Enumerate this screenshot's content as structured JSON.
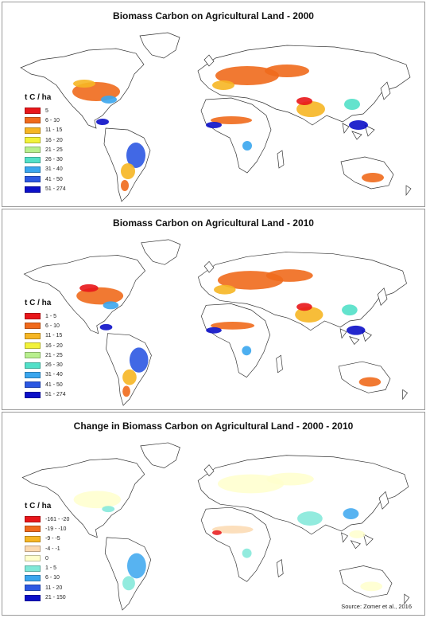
{
  "unit_label": "t C / ha",
  "source": "Source: Zomer et al., 2016",
  "panels": [
    {
      "title": "Biomass Carbon on Agricultural Land - 2000",
      "legend": [
        {
          "label": "5",
          "color": "#e8161a"
        },
        {
          "label": "6 - 10",
          "color": "#f06a1c"
        },
        {
          "label": "11 - 15",
          "color": "#f6b624"
        },
        {
          "label": "16 - 20",
          "color": "#f2f23a"
        },
        {
          "label": "21 - 25",
          "color": "#b8ef8e"
        },
        {
          "label": "26 - 30",
          "color": "#52e0c8"
        },
        {
          "label": "31 - 40",
          "color": "#3aa6ee"
        },
        {
          "label": "41 - 50",
          "color": "#2c58e2"
        },
        {
          "label": "51 - 274",
          "color": "#0c10c8"
        }
      ]
    },
    {
      "title": "Biomass Carbon on Agricultural Land - 2010",
      "legend": [
        {
          "label": "1 - 5",
          "color": "#e8161a"
        },
        {
          "label": "6 - 10",
          "color": "#f06a1c"
        },
        {
          "label": "11 - 15",
          "color": "#f6b624"
        },
        {
          "label": "16 - 20",
          "color": "#f2f23a"
        },
        {
          "label": "21 - 25",
          "color": "#b8ef8e"
        },
        {
          "label": "26 - 30",
          "color": "#52e0c8"
        },
        {
          "label": "31 - 40",
          "color": "#3aa6ee"
        },
        {
          "label": "41 - 50",
          "color": "#2c58e2"
        },
        {
          "label": "51 - 274",
          "color": "#0c10c8"
        }
      ]
    },
    {
      "title": "Change in Biomass Carbon on Agricultural Land - 2000 - 2010",
      "legend": [
        {
          "label": "-161 - -20",
          "color": "#e8161a"
        },
        {
          "label": "-19 - -10",
          "color": "#f06a1c"
        },
        {
          "label": "-9 - -5",
          "color": "#f6b624"
        },
        {
          "label": "-4 - -1",
          "color": "#fbd9b0"
        },
        {
          "label": "0",
          "color": "#ffffcc"
        },
        {
          "label": "1 - 5",
          "color": "#7fe8d8"
        },
        {
          "label": "6 - 10",
          "color": "#3aa6ee"
        },
        {
          "label": "11 - 20",
          "color": "#2c58e2"
        },
        {
          "label": "21 - 150",
          "color": "#0c10c8"
        }
      ]
    }
  ]
}
